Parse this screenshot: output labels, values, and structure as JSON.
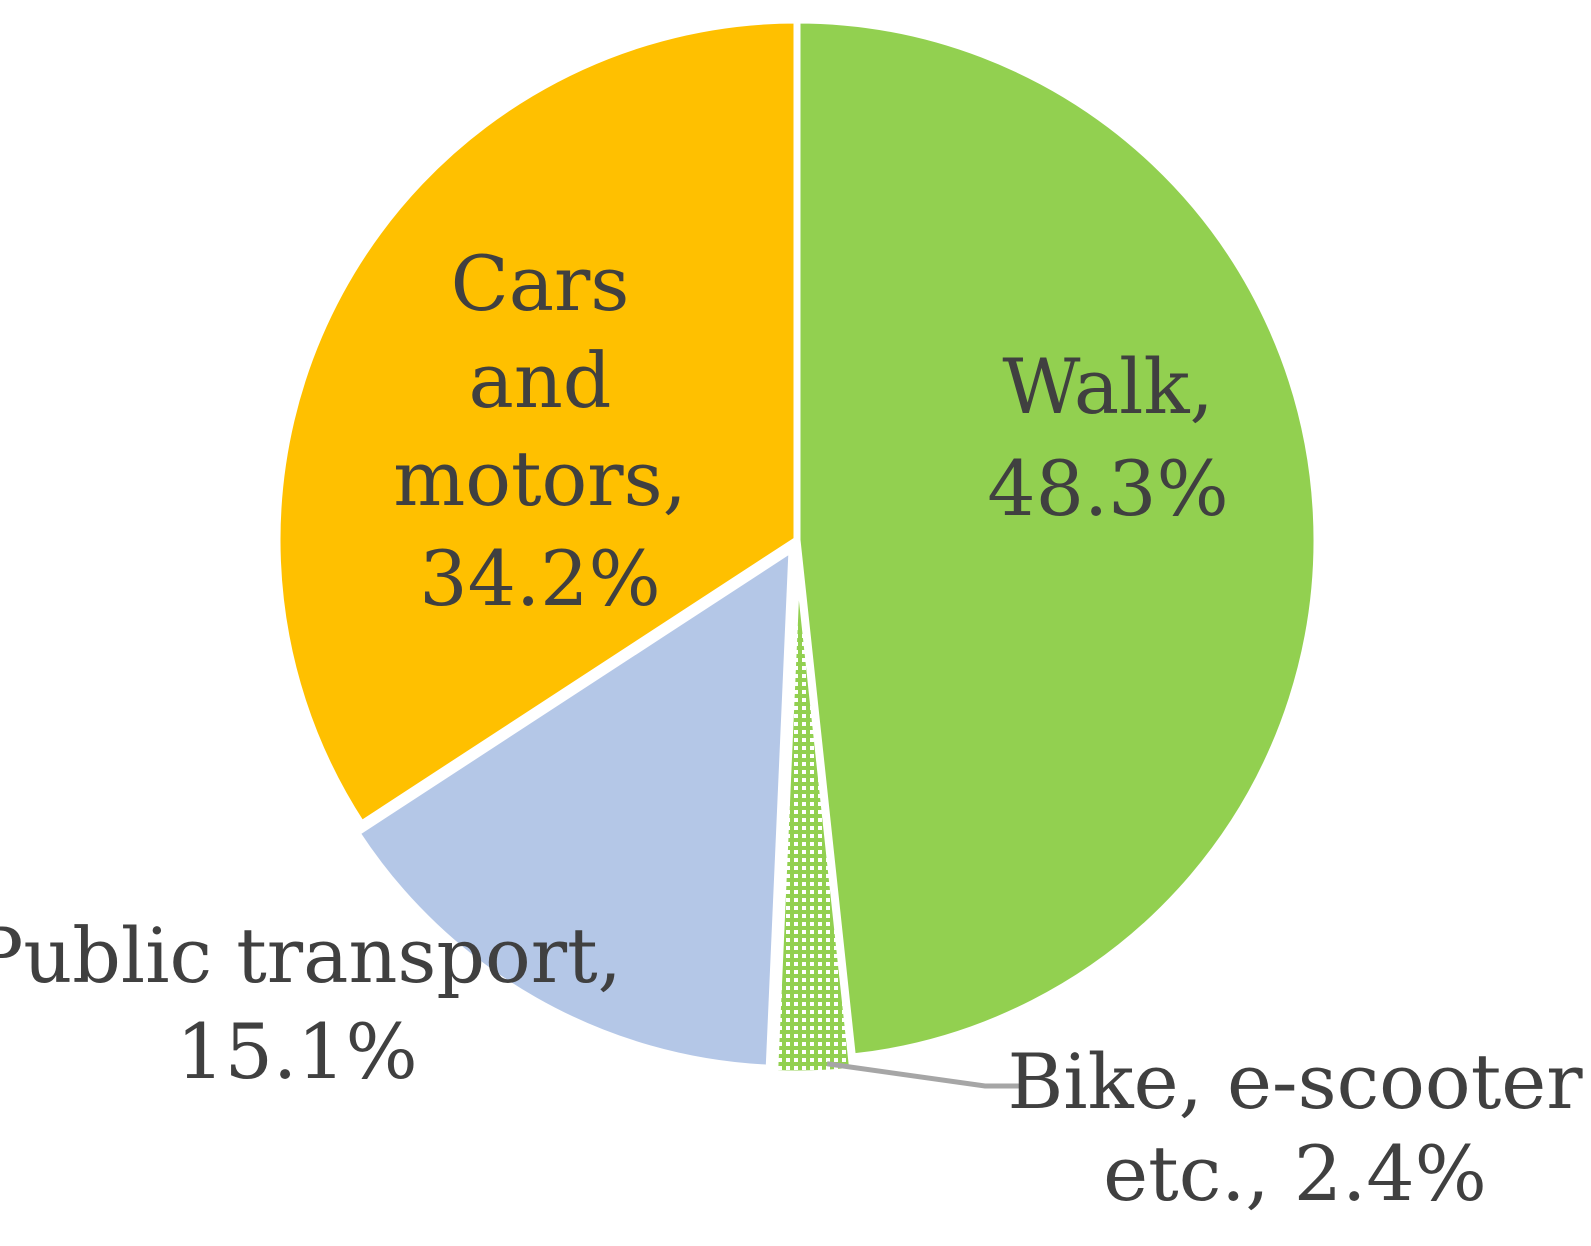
{
  "chart_data": {
    "type": "pie",
    "start_angle_deg": 0,
    "direction": "clockwise",
    "slices": [
      {
        "name": "Walk",
        "value": 48.3,
        "label_lines": [
          "Walk,",
          "48.3%"
        ],
        "color": "#92d050",
        "pattern": "solid"
      },
      {
        "name": "Bike, e-scooter etc.",
        "value": 2.4,
        "label_lines": [
          "Bike, e-scooter",
          "etc., 2.4%"
        ],
        "color": "#92d050",
        "pattern": "dotted-grid"
      },
      {
        "name": "Public transport",
        "value": 15.1,
        "label_lines": [
          "Public transport,",
          "15.1%"
        ],
        "color": "#b4c7e7",
        "pattern": "solid"
      },
      {
        "name": "Cars and motors",
        "value": 34.2,
        "label_lines": [
          "Cars",
          "and",
          "motors,",
          "34.2%"
        ],
        "color": "#ffc000",
        "pattern": "solid"
      }
    ]
  },
  "leader_line_color": "#a6a6a6",
  "separator_color": "#ffffff",
  "label_color": "#404040"
}
